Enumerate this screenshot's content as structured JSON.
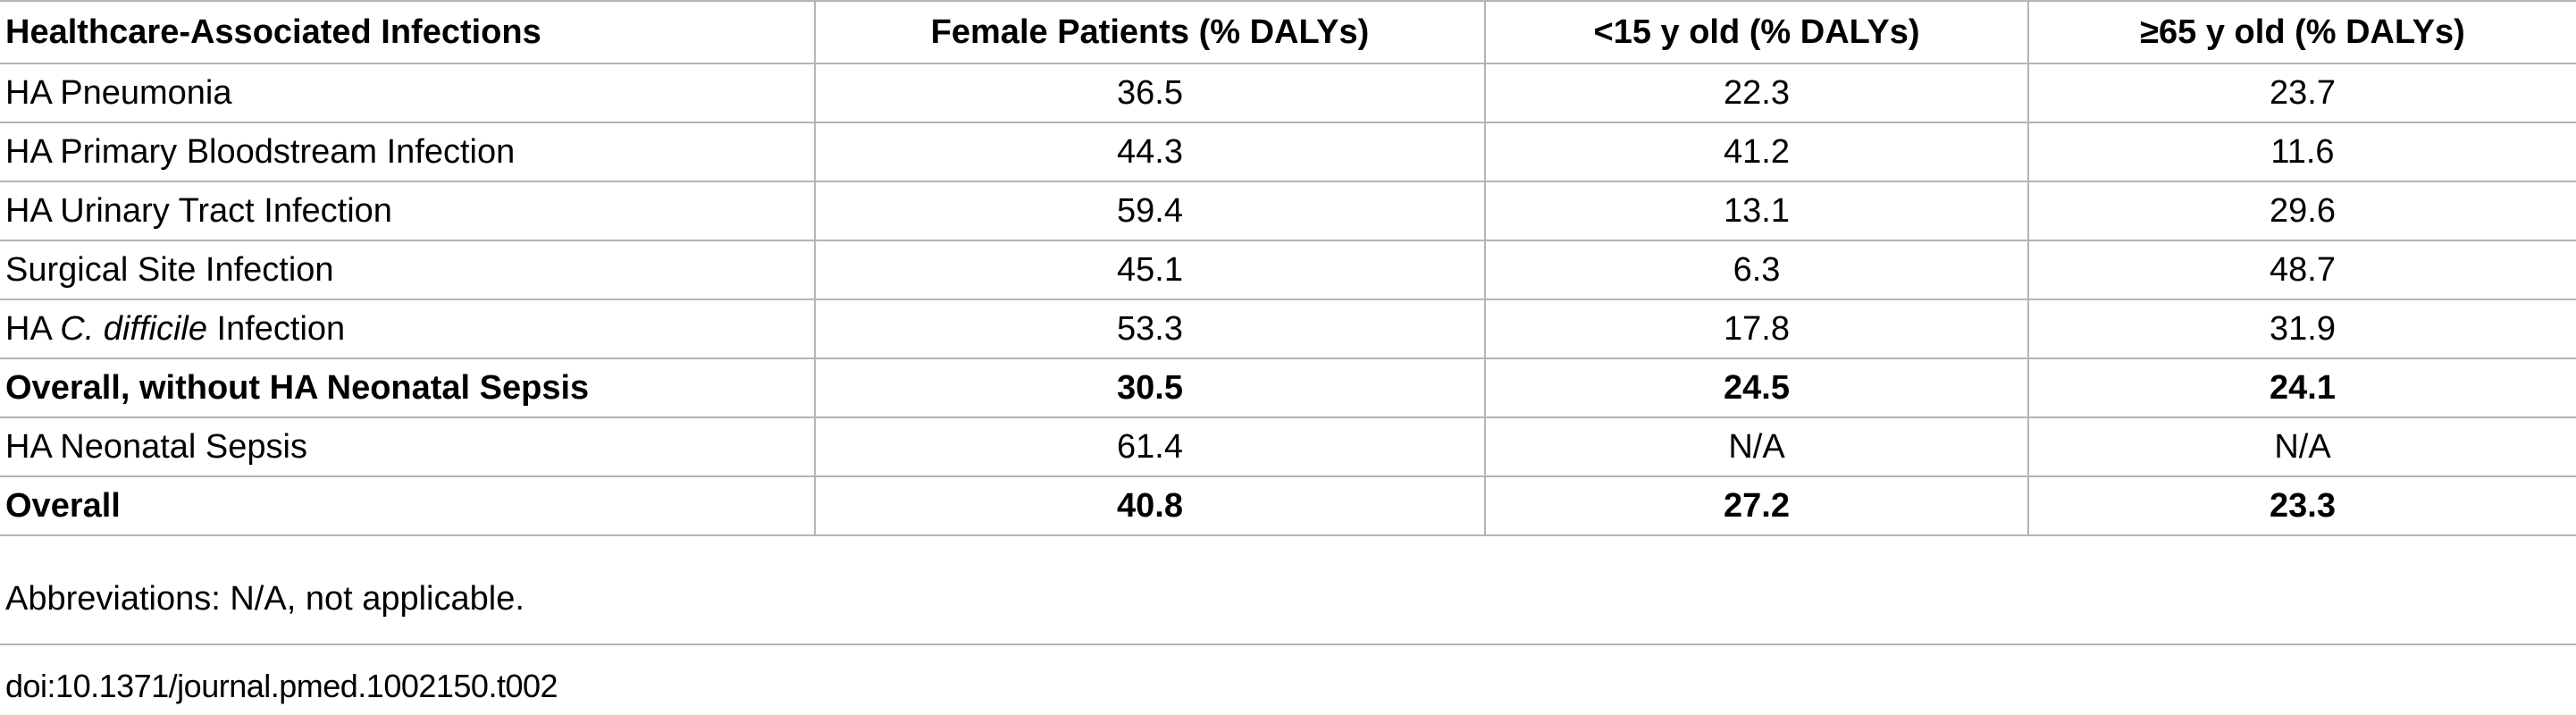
{
  "table": {
    "headers": [
      "Healthcare-Associated Infections",
      "Female Patients (% DALYs)",
      "<15 y old (% DALYs)",
      "≥65 y old (% DALYs)"
    ],
    "rows": [
      {
        "name_prefix": "HA Pneumonia",
        "name_italic": "",
        "name_suffix": "",
        "female": "36.5",
        "under15": "22.3",
        "over65": "23.7",
        "bold": false
      },
      {
        "name_prefix": "HA Primary Bloodstream Infection",
        "name_italic": "",
        "name_suffix": "",
        "female": "44.3",
        "under15": "41.2",
        "over65": "11.6",
        "bold": false
      },
      {
        "name_prefix": "HA Urinary Tract Infection",
        "name_italic": "",
        "name_suffix": "",
        "female": "59.4",
        "under15": "13.1",
        "over65": "29.6",
        "bold": false
      },
      {
        "name_prefix": "Surgical Site Infection",
        "name_italic": "",
        "name_suffix": "",
        "female": "45.1",
        "under15": "6.3",
        "over65": "48.7",
        "bold": false
      },
      {
        "name_prefix": "HA ",
        "name_italic": "C. difficile",
        "name_suffix": " Infection",
        "female": "53.3",
        "under15": "17.8",
        "over65": "31.9",
        "bold": false
      },
      {
        "name_prefix": "Overall, without HA Neonatal Sepsis",
        "name_italic": "",
        "name_suffix": "",
        "female": "30.5",
        "under15": "24.5",
        "over65": "24.1",
        "bold": true
      },
      {
        "name_prefix": "HA Neonatal Sepsis",
        "name_italic": "",
        "name_suffix": "",
        "female": "61.4",
        "under15": "N/A",
        "over65": "N/A",
        "bold": false
      },
      {
        "name_prefix": "Overall",
        "name_italic": "",
        "name_suffix": "",
        "female": "40.8",
        "under15": "27.2",
        "over65": "23.3",
        "bold": true
      }
    ]
  },
  "footnote": "Abbreviations: N/A, not applicable.",
  "doi": "doi:10.1371/journal.pmed.1002150.t002"
}
